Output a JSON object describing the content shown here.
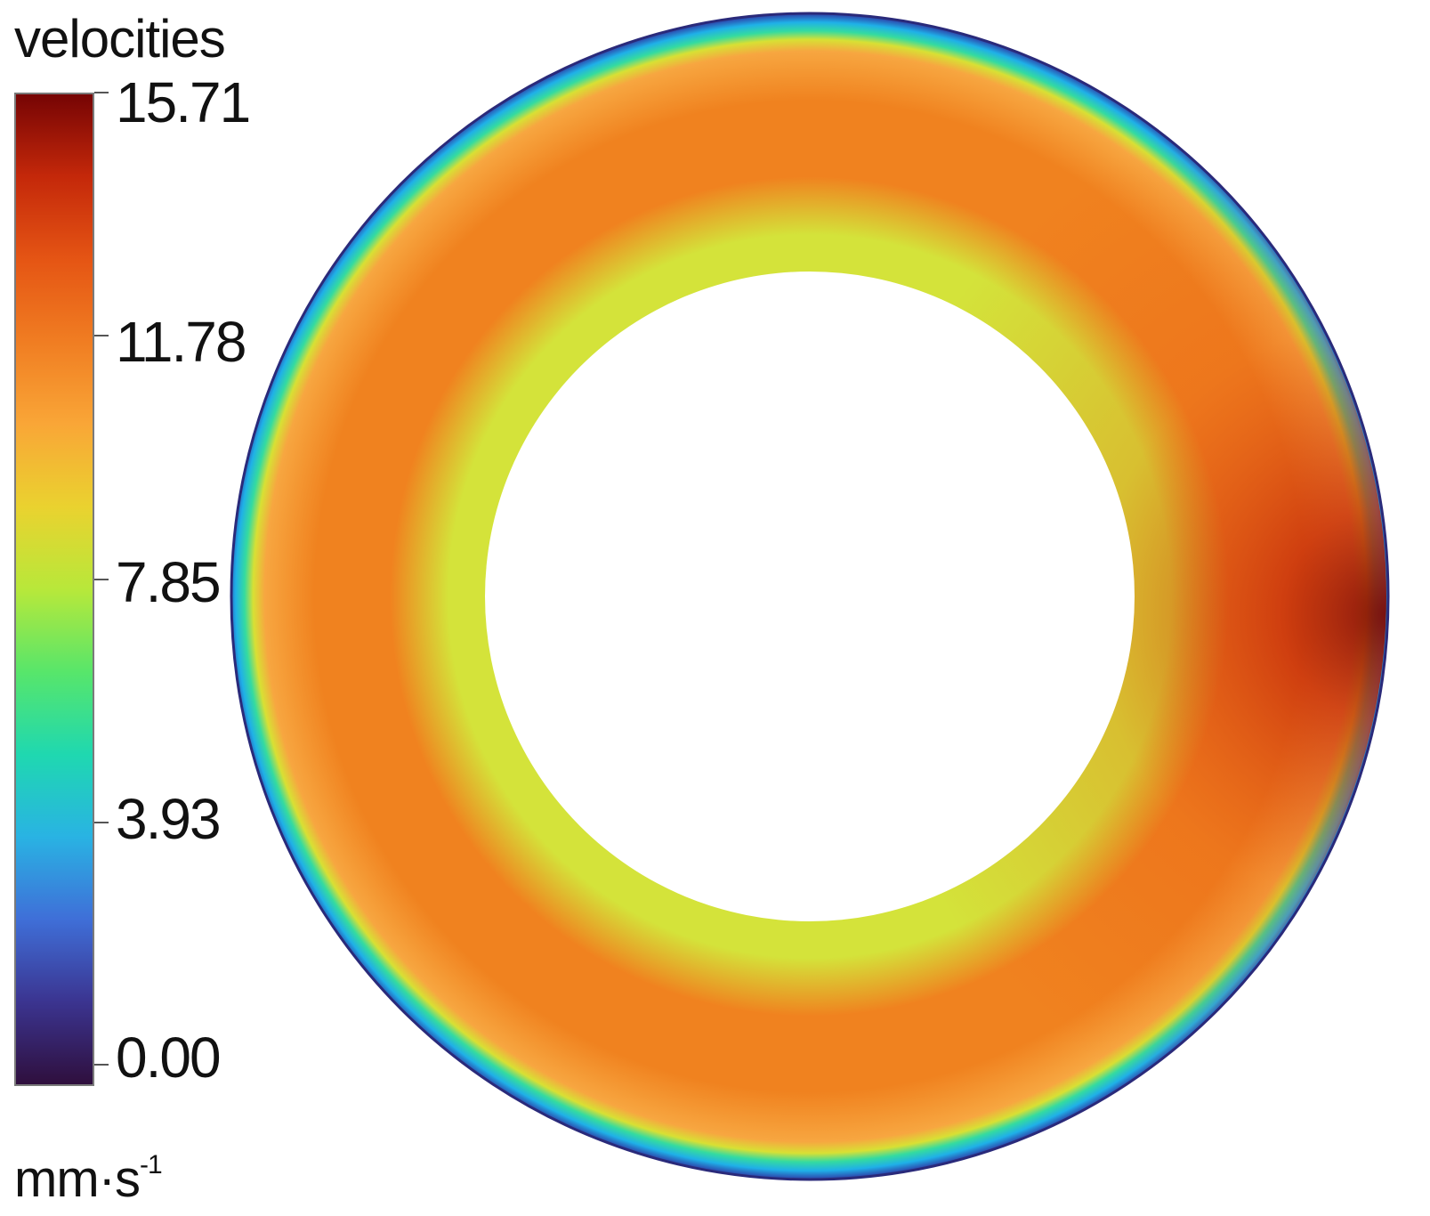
{
  "colorbar": {
    "title": "velocities",
    "unit_base": "mm·s",
    "unit_exponent": "-1",
    "ticks": [
      "15.71",
      "11.78",
      "7.85",
      "3.93",
      "0.00"
    ],
    "min": 0.0,
    "max": 15.71,
    "colormap": [
      "#2f0f3d",
      "#3b3490",
      "#3f6fd8",
      "#29b3e3",
      "#1fd8b0",
      "#58e66a",
      "#b8e83a",
      "#ead22f",
      "#f9a637",
      "#f07d22",
      "#e55514",
      "#c4280a",
      "#760404"
    ]
  },
  "field": {
    "inner_color": "#d4e33a",
    "ring_color": "#f0821f",
    "peak_color": "#7c0905",
    "wall_colors": [
      "#f7a640",
      "#d8e034",
      "#34dba0",
      "#1fb0e8",
      "#2e3ca6"
    ]
  }
}
